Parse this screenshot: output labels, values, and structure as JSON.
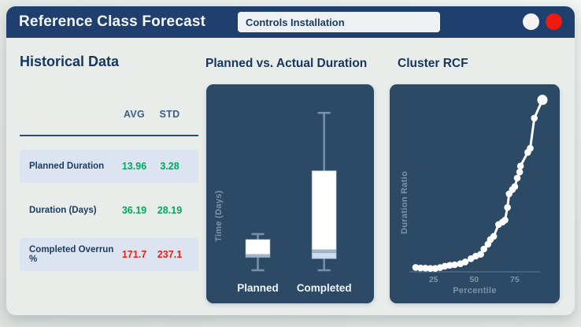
{
  "header": {
    "title": "Reference Class Forecast",
    "selector_value": "Controls Installation"
  },
  "window_controls": {
    "minimize_color": "#f2f3f2",
    "close_color": "#ee1a0e"
  },
  "colors": {
    "header_bg": "#1f3f6e",
    "panel_bg": "#2c4a66",
    "body_bg": "#e9edea",
    "row_highlight": "#dde4f1",
    "navy_text": "#16365d",
    "header_col_text": "#41607f",
    "green": "#00a85c",
    "red": "#ee2014",
    "axis_text": "#7b93a9",
    "whisker": "#7791ab",
    "box_fill": "#ffffff",
    "box_lower_fill": "#cddcee",
    "median_band": "#9fb6ca",
    "marker": "#ffffff"
  },
  "historical": {
    "title": "Historical Data",
    "columns": [
      "AVG",
      "STD"
    ],
    "rows": [
      {
        "label": "Planned Duration",
        "avg": "13.96",
        "std": "3.28",
        "value_color": "green",
        "highlight": true
      },
      {
        "label": "Duration (Days)",
        "avg": "36.19",
        "std": "28.19",
        "value_color": "green",
        "highlight": false
      },
      {
        "label": "Completed Overrun %",
        "avg": "171.7",
        "std": "237.1",
        "value_color": "red",
        "highlight": true
      }
    ]
  },
  "chart_data": [
    {
      "type": "boxplot",
      "title": "Planned vs. Actual Duration",
      "ylabel": "Time (Days)",
      "categories": [
        "Planned",
        "Completed"
      ],
      "y_axis_unlabeled": true,
      "note": "no y tick labels shown; stats are fractions of plot height (0=bottom, 1=top)",
      "series": [
        {
          "name": "Planned",
          "whisker_low": 0.038,
          "q1": 0.107,
          "median": 0.115,
          "q3": 0.203,
          "whisker_high": 0.232
        },
        {
          "name": "Completed",
          "whisker_low": 0.038,
          "q1": 0.1,
          "median": 0.14,
          "q3": 0.571,
          "whisker_high": 0.881
        }
      ]
    },
    {
      "type": "line",
      "title": "Cluster RCF",
      "xlabel": "Percentile",
      "ylabel": "Duration Ratio",
      "xticks": [
        25,
        50,
        75
      ],
      "xlim": [
        11,
        95
      ],
      "y_axis_unlabeled": true,
      "note": "no y tick labels shown; y values are fractions of plot height (0=axis, 1=top)",
      "points": [
        [
          14,
          0.025
        ],
        [
          17,
          0.022
        ],
        [
          20,
          0.021
        ],
        [
          23,
          0.019
        ],
        [
          26,
          0.019
        ],
        [
          29,
          0.024
        ],
        [
          32,
          0.032
        ],
        [
          35,
          0.037
        ],
        [
          38,
          0.04
        ],
        [
          41.5,
          0.046
        ],
        [
          44.5,
          0.056
        ],
        [
          48,
          0.074
        ],
        [
          51,
          0.089
        ],
        [
          54,
          0.099
        ],
        [
          56,
          0.129
        ],
        [
          58.5,
          0.156
        ],
        [
          60,
          0.182
        ],
        [
          62,
          0.2
        ],
        [
          65,
          0.267
        ],
        [
          67.5,
          0.281
        ],
        [
          69,
          0.292
        ],
        [
          70.5,
          0.363
        ],
        [
          71.5,
          0.44
        ],
        [
          73.5,
          0.464
        ],
        [
          75,
          0.481
        ],
        [
          76.5,
          0.529
        ],
        [
          78,
          0.563
        ],
        [
          78.5,
          0.597
        ],
        [
          83,
          0.674
        ],
        [
          84.5,
          0.697
        ],
        [
          87,
          0.867
        ],
        [
          92,
          0.97
        ]
      ]
    }
  ]
}
